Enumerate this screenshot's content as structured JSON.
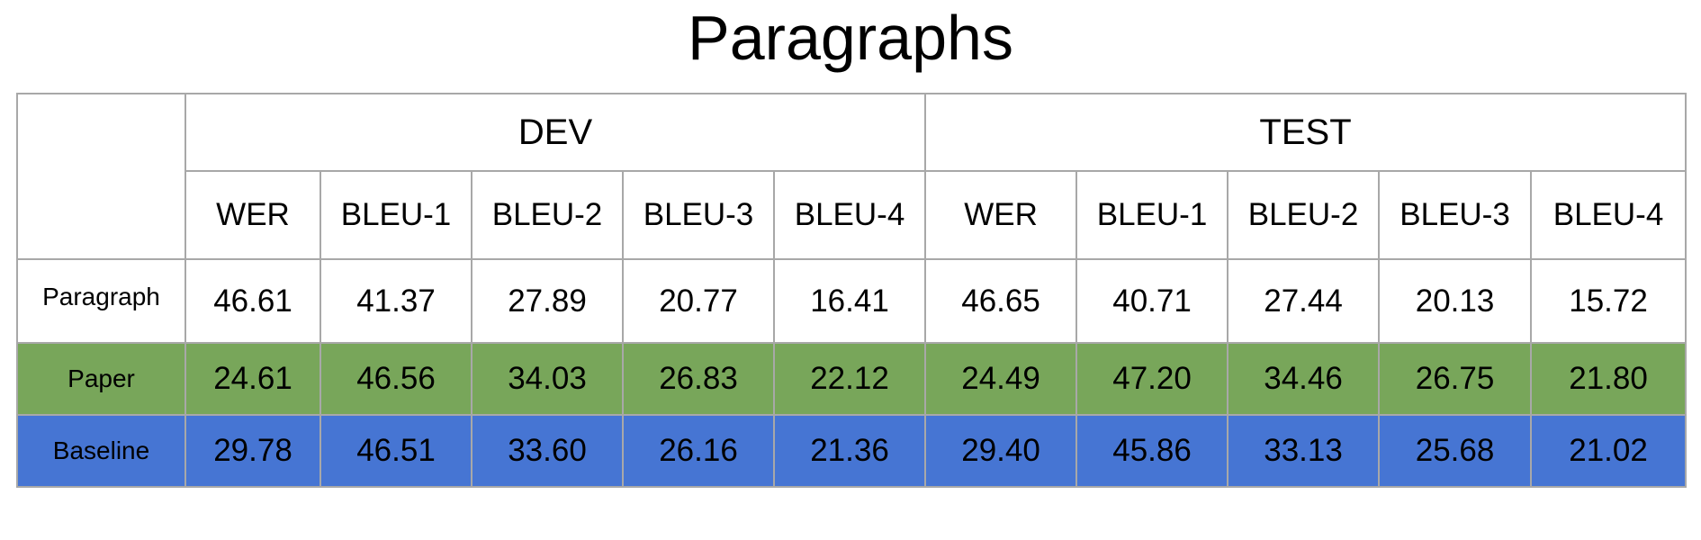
{
  "title": "Paragraphs",
  "chart_data": {
    "type": "table",
    "title": "Paragraphs",
    "groups": [
      "DEV",
      "TEST"
    ],
    "metrics": [
      "WER",
      "BLEU-1",
      "BLEU-2",
      "BLEU-3",
      "BLEU-4"
    ],
    "columns": [
      "WER",
      "BLEU-1",
      "BLEU-2",
      "BLEU-3",
      "BLEU-4",
      "WER",
      "BLEU-1",
      "BLEU-2",
      "BLEU-3",
      "BLEU-4"
    ],
    "rows": [
      {
        "label": "Paragraph",
        "color": "#ffffff",
        "values": [
          "46.61",
          "41.37",
          "27.89",
          "20.77",
          "16.41",
          "46.65",
          "40.71",
          "27.44",
          "20.13",
          "15.72"
        ]
      },
      {
        "label": "Paper",
        "color": "#78a65a",
        "values": [
          "24.61",
          "46.56",
          "34.03",
          "26.83",
          "22.12",
          "24.49",
          "47.20",
          "34.46",
          "26.75",
          "21.80"
        ]
      },
      {
        "label": "Baseline",
        "color": "#4675d3",
        "values": [
          "29.78",
          "46.51",
          "33.60",
          "26.16",
          "21.36",
          "29.40",
          "45.86",
          "33.13",
          "25.68",
          "21.02"
        ]
      }
    ]
  }
}
